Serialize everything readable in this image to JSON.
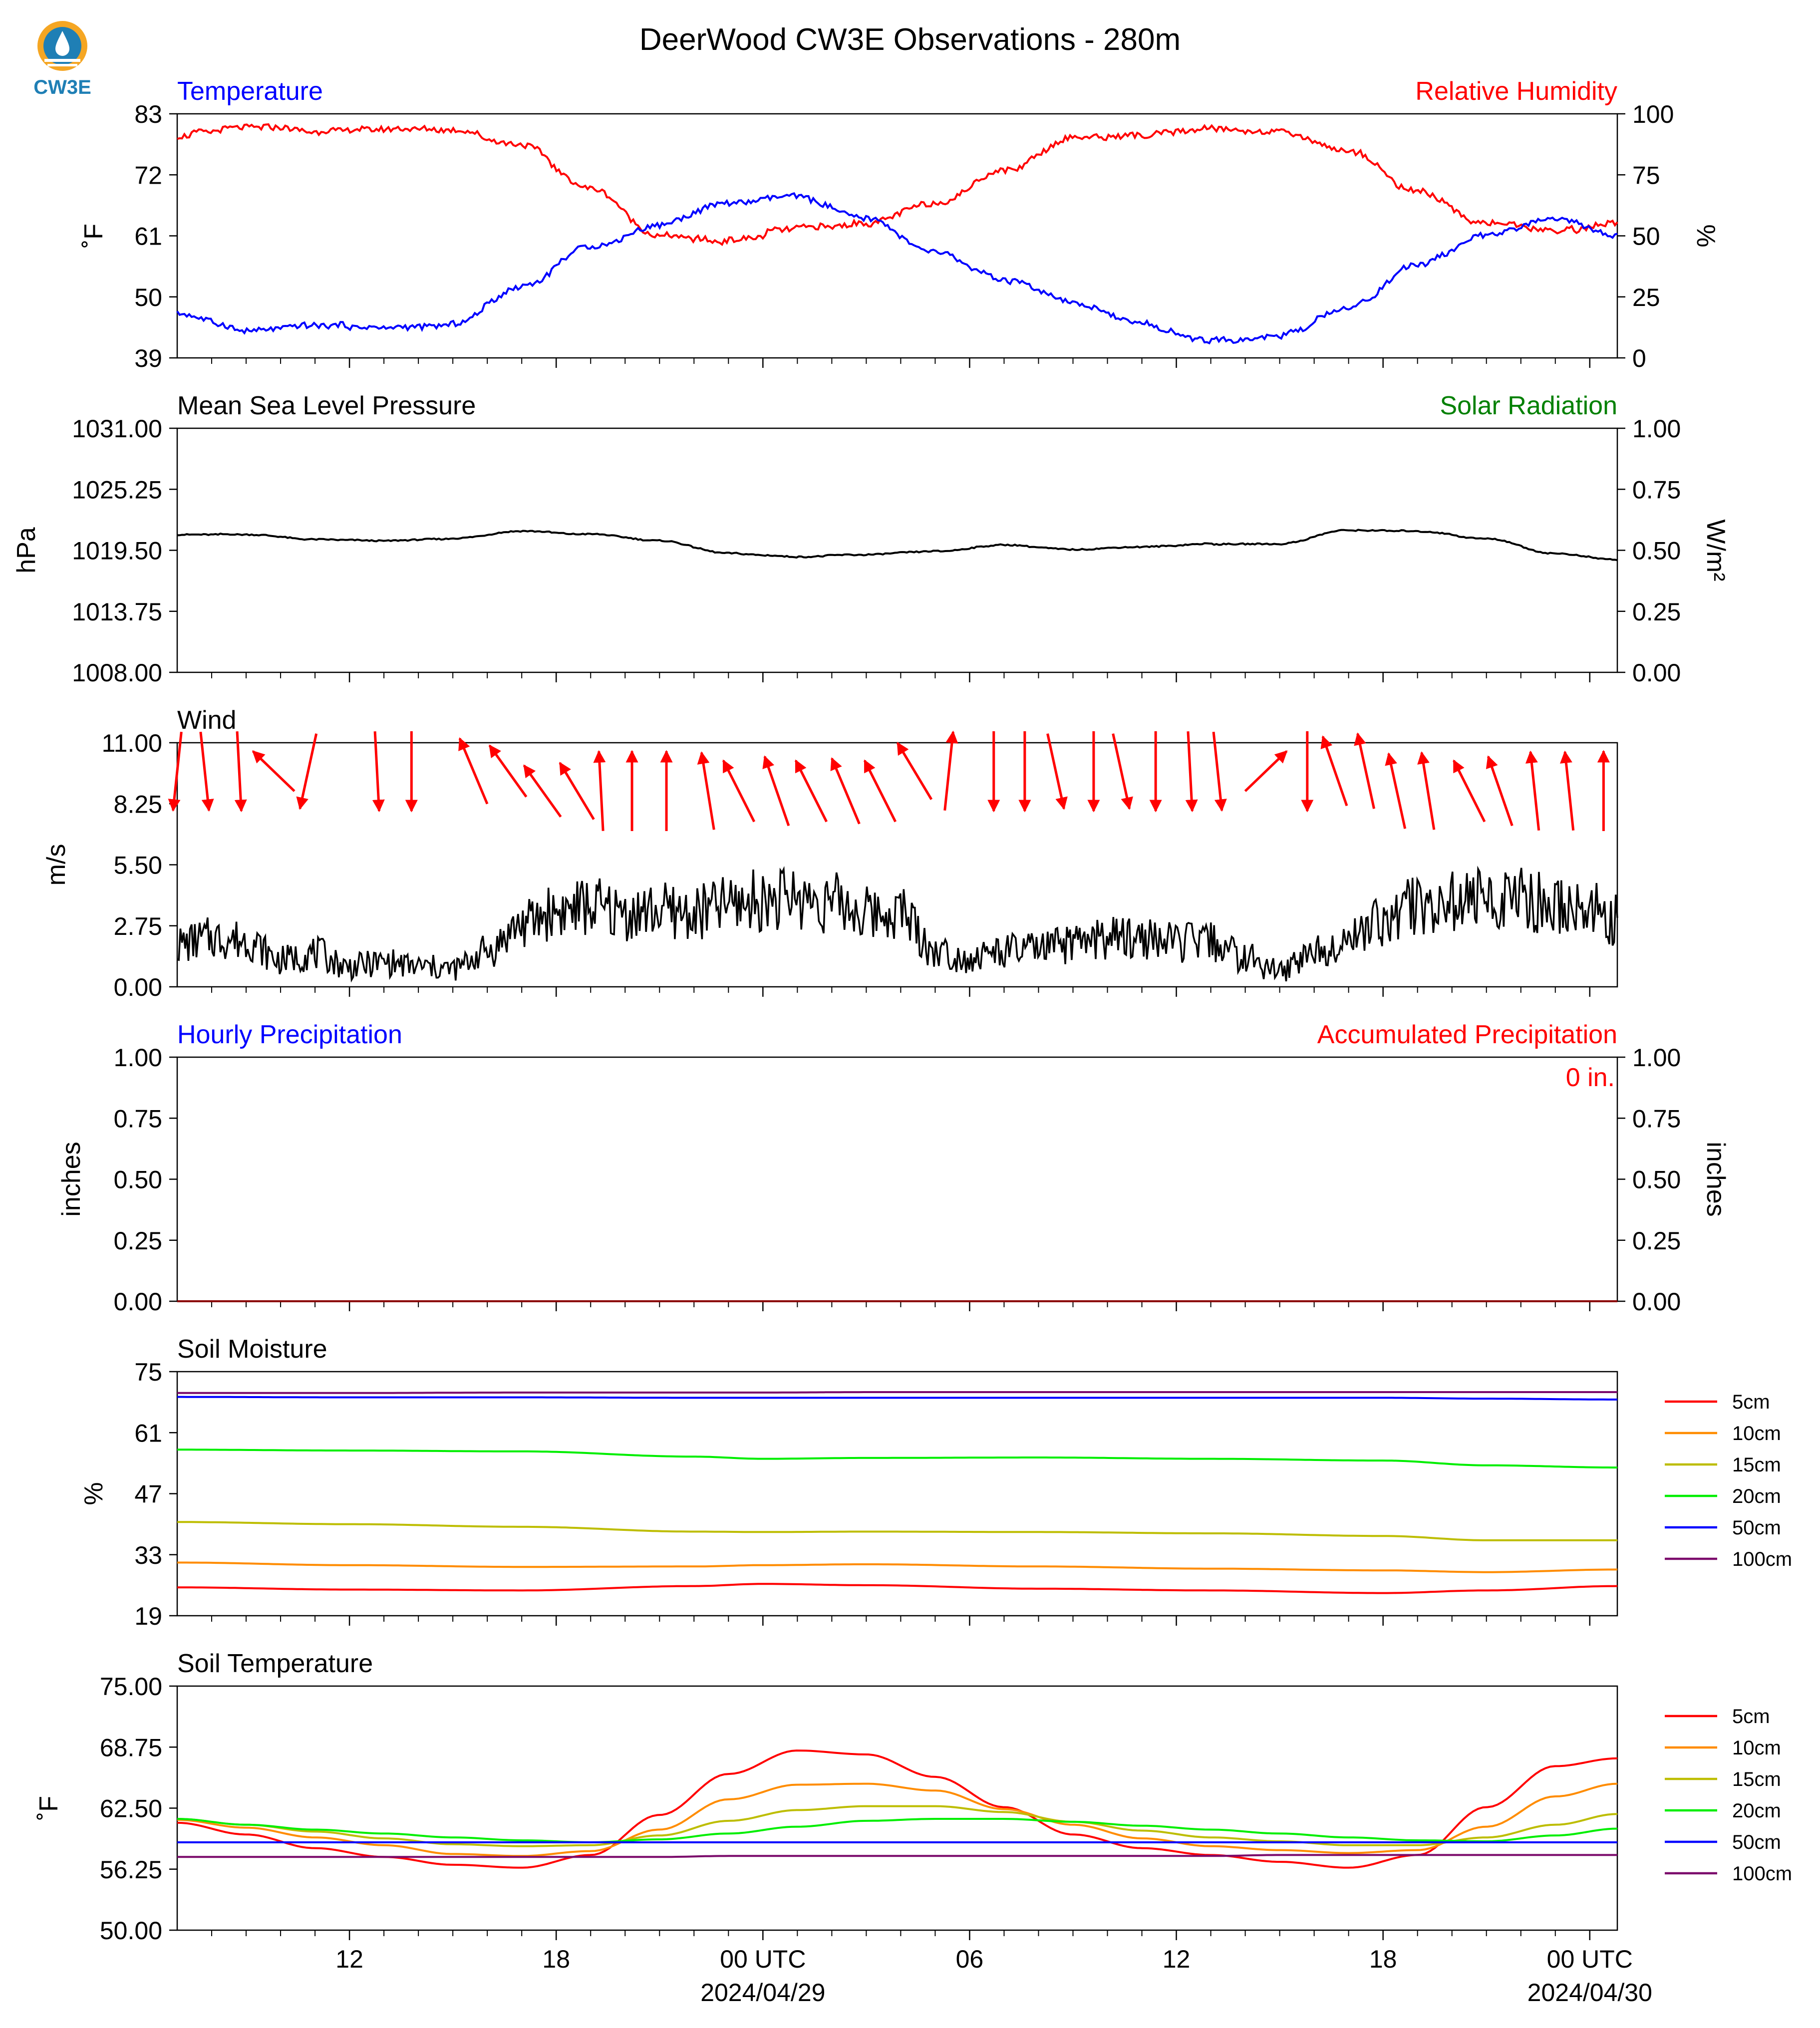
{
  "title": "DeerWood CW3E Observations - 280m",
  "logo_text": "CW3E",
  "colors": {
    "red": "#ff0000",
    "blue": "#0000ff",
    "green": "#008000",
    "black": "#000000",
    "logo_orange": "#f5a623",
    "logo_blue": "#1f7fb5"
  },
  "time_axis": {
    "tick_labels": [
      "12",
      "18",
      "00 UTC",
      "06",
      "12",
      "18",
      "00 UTC"
    ],
    "date_labels": [
      "2024/04/29",
      "2024/04/30"
    ]
  },
  "panels": {
    "temp_rh": {
      "left_title": "Temperature",
      "right_title": "Relative Humidity",
      "ylabel_left": "˚F",
      "ylabel_right": "%",
      "yticks_left": [
        "83",
        "72",
        "61",
        "50",
        "39"
      ],
      "yticks_right": [
        "100",
        "75",
        "50",
        "25",
        "0"
      ]
    },
    "pressure": {
      "left_title": "Mean Sea Level Pressure",
      "right_title": "Solar Radiation",
      "ylabel_left": "hPa",
      "ylabel_right": "W/m²",
      "yticks_left": [
        "1031.00",
        "1025.25",
        "1019.50",
        "1013.75",
        "1008.00"
      ],
      "yticks_right": [
        "1.00",
        "0.75",
        "0.50",
        "0.25",
        "0.00"
      ]
    },
    "wind": {
      "left_title": "Wind",
      "ylabel_left": "m/s",
      "yticks_left": [
        "11.00",
        "8.25",
        "5.50",
        "2.75",
        "0.00"
      ]
    },
    "precip": {
      "left_title": "Hourly Precipitation",
      "right_title": "Accumulated Precipitation",
      "ylabel_left": "inches",
      "ylabel_right": "inches",
      "yticks_left": [
        "1.00",
        "0.75",
        "0.50",
        "0.25",
        "0.00"
      ],
      "yticks_right": [
        "1.00",
        "0.75",
        "0.50",
        "0.25",
        "0.00"
      ],
      "accum_label": "0 in."
    },
    "soil_moisture": {
      "left_title": "Soil Moisture",
      "ylabel_left": "%",
      "yticks_left": [
        "75",
        "61",
        "47",
        "33",
        "19"
      ],
      "legend": [
        "5cm",
        "10cm",
        "15cm",
        "20cm",
        "50cm",
        "100cm"
      ]
    },
    "soil_temp": {
      "left_title": "Soil Temperature",
      "ylabel_left": "˚F",
      "yticks_left": [
        "75.00",
        "68.75",
        "62.50",
        "56.25",
        "50.00"
      ],
      "legend": [
        "5cm",
        "10cm",
        "15cm",
        "20cm",
        "50cm",
        "100cm"
      ]
    }
  },
  "chart_data": [
    {
      "type": "line",
      "title": "Temperature / Relative Humidity",
      "x_hours": [
        7,
        9,
        11,
        13,
        15,
        17,
        19,
        21,
        23,
        25,
        27,
        29,
        31,
        33,
        35,
        37,
        39,
        41,
        43,
        45,
        47,
        48.8
      ],
      "series": [
        {
          "name": "Temperature",
          "axis": "left",
          "ylim": [
            39,
            83
          ],
          "values": [
            47,
            44,
            45,
            44.5,
            45,
            52,
            59,
            63,
            67,
            68,
            64,
            58,
            53,
            49,
            45,
            42,
            43,
            48,
            56,
            61,
            64,
            61
          ]
        },
        {
          "name": "Relative Humidity",
          "axis": "right",
          "ylim": [
            0,
            100
          ],
          "values": [
            91,
            95,
            93,
            94,
            93,
            87,
            69,
            50,
            48,
            53,
            55,
            63,
            77,
            90,
            91,
            94,
            93,
            85,
            68,
            55,
            52,
            55
          ]
        }
      ]
    },
    {
      "type": "line",
      "title": "Mean Sea Level Pressure",
      "ylim": [
        1008,
        1031
      ],
      "x_hours": [
        7,
        9,
        11,
        13,
        15,
        17,
        19,
        21,
        23,
        25,
        27,
        29,
        31,
        33,
        35,
        37,
        39,
        41,
        43,
        45,
        47,
        48.8
      ],
      "series": [
        {
          "name": "Mean Sea Level Pressure",
          "values": [
            1021.0,
            1021.0,
            1020.5,
            1020.4,
            1020.6,
            1021.3,
            1021.0,
            1020.4,
            1019.2,
            1018.9,
            1019.1,
            1019.4,
            1020.0,
            1019.6,
            1019.8,
            1020.1,
            1020.1,
            1021.4,
            1021.3,
            1020.6,
            1019.2,
            1018.6
          ]
        }
      ]
    },
    {
      "type": "line",
      "title": "Wind",
      "ylim": [
        0,
        11
      ],
      "x_hours": [
        7,
        8,
        9,
        10,
        11,
        12,
        13,
        14,
        15,
        16,
        17,
        18,
        19,
        20,
        21,
        22,
        23,
        24,
        25,
        26,
        27,
        28,
        29,
        30,
        31,
        32,
        33,
        34,
        35,
        36,
        37,
        38,
        39,
        40,
        41,
        42,
        43,
        44,
        45,
        46,
        47,
        48,
        48.8
      ],
      "series": [
        {
          "name": "Wind speed",
          "values": [
            1.9,
            2.2,
            2.1,
            1.2,
            1.5,
            0.9,
            1.1,
            0.9,
            0.8,
            1.6,
            2.8,
            3.4,
            3.6,
            3.3,
            3.4,
            3.3,
            3.7,
            3.9,
            4.0,
            3.8,
            3.3,
            3.4,
            1.6,
            1.3,
            1.6,
            1.7,
            1.9,
            2.2,
            2.2,
            2.0,
            2.0,
            1.3,
            0.7,
            1.6,
            2.2,
            3.0,
            3.7,
            3.8,
            3.9,
            4.0,
            3.6,
            3.5,
            3.0
          ]
        }
      ],
      "arrows": {
        "x_hours": [
          7,
          7.8,
          8.8,
          9.8,
          10.8,
          12.8,
          13.8,
          15.6,
          16.6,
          17.6,
          18.6,
          19.3,
          20.2,
          21.2,
          22.4,
          23.3,
          24.4,
          25.4,
          26.4,
          27.4,
          28.4,
          29.4,
          30.7,
          31.6,
          32.5,
          33.6,
          34.4,
          35.4,
          36.4,
          37.2,
          38.6,
          39.8,
          40.6,
          41.5,
          42.4,
          43.3,
          44.5,
          45.4,
          46.4,
          47.4,
          48.4
        ],
        "direction_deg": [
          190,
          170,
          175,
          300,
          200,
          175,
          180,
          325,
          310,
          310,
          315,
          355,
          0,
          0,
          345,
          320,
          330,
          320,
          325,
          320,
          315,
          10,
          180,
          180,
          160,
          180,
          160,
          180,
          175,
          170,
          60,
          180,
          330,
          340,
          340,
          345,
          320,
          330,
          350,
          350,
          0
        ]
      }
    },
    {
      "type": "line",
      "title": "Hourly Precipitation / Accumulated Precipitation",
      "ylim": [
        0,
        1
      ],
      "x_hours": [
        7,
        48.8
      ],
      "series": [
        {
          "name": "Hourly Precipitation",
          "values": [
            0,
            0
          ]
        },
        {
          "name": "Accumulated Precipitation",
          "values": [
            0,
            0
          ]
        }
      ]
    },
    {
      "type": "line",
      "title": "Soil Moisture",
      "ylim": [
        19,
        75
      ],
      "x_hours": [
        7,
        12,
        17,
        22,
        24,
        27,
        32,
        37,
        42,
        45,
        48.8
      ],
      "series": [
        {
          "name": "5cm",
          "values": [
            25.5,
            25.0,
            24.8,
            25.8,
            26.3,
            26.0,
            25.2,
            24.8,
            24.2,
            24.8,
            25.8
          ]
        },
        {
          "name": "10cm",
          "values": [
            31.2,
            30.6,
            30.2,
            30.3,
            30.6,
            30.8,
            30.3,
            29.8,
            29.4,
            29.0,
            29.6
          ]
        },
        {
          "name": "15cm",
          "values": [
            40.5,
            40.0,
            39.4,
            38.3,
            38.2,
            38.3,
            38.2,
            37.9,
            37.3,
            36.3,
            36.3
          ]
        },
        {
          "name": "20cm",
          "values": [
            57.1,
            56.9,
            56.7,
            55.5,
            55.0,
            55.2,
            55.3,
            55.0,
            54.6,
            53.5,
            53.0
          ]
        },
        {
          "name": "50cm",
          "values": [
            69.2,
            69.1,
            69.1,
            69.0,
            69.0,
            69.0,
            69.0,
            69.0,
            69.0,
            68.8,
            68.6
          ]
        },
        {
          "name": "100cm",
          "values": [
            70.1,
            70.1,
            70.2,
            70.2,
            70.2,
            70.3,
            70.3,
            70.3,
            70.3,
            70.3,
            70.3
          ]
        }
      ]
    },
    {
      "type": "line",
      "title": "Soil Temperature",
      "ylim": [
        50,
        75
      ],
      "x_hours": [
        7,
        9,
        11,
        13,
        15,
        17,
        19,
        21,
        23,
        25,
        27,
        29,
        31,
        33,
        35,
        37,
        39,
        41,
        43,
        45,
        47,
        48.8
      ],
      "series": [
        {
          "name": "5cm",
          "values": [
            61.0,
            59.8,
            58.4,
            57.5,
            56.7,
            56.4,
            57.7,
            61.8,
            66.0,
            68.4,
            68.0,
            65.7,
            62.6,
            59.8,
            58.4,
            57.7,
            57.0,
            56.4,
            57.7,
            62.6,
            66.8,
            67.6
          ]
        },
        {
          "name": "10cm",
          "values": [
            61.3,
            60.5,
            59.5,
            58.7,
            57.8,
            57.6,
            58.1,
            60.3,
            63.4,
            64.9,
            65.0,
            64.3,
            62.4,
            60.8,
            59.4,
            58.6,
            58.2,
            57.9,
            58.2,
            60.6,
            63.7,
            65.0
          ]
        },
        {
          "name": "15cm",
          "values": [
            61.4,
            60.8,
            60.1,
            59.4,
            58.8,
            58.6,
            58.7,
            59.7,
            61.2,
            62.3,
            62.7,
            62.7,
            62.1,
            61.1,
            60.2,
            59.5,
            59.1,
            58.7,
            58.7,
            59.5,
            60.8,
            61.9
          ]
        },
        {
          "name": "20cm",
          "values": [
            61.4,
            60.8,
            60.3,
            59.9,
            59.5,
            59.2,
            59.0,
            59.3,
            59.9,
            60.6,
            61.2,
            61.4,
            61.4,
            61.1,
            60.7,
            60.3,
            59.9,
            59.5,
            59.2,
            59.1,
            59.7,
            60.4
          ]
        },
        {
          "name": "50cm",
          "values": [
            59.0,
            59.0,
            59.0,
            59.0,
            59.0,
            59.0,
            59.0,
            59.0,
            59.0,
            59.0,
            59.0,
            59.0,
            59.0,
            59.0,
            59.0,
            59.0,
            59.0,
            59.0,
            59.0,
            59.0,
            59.0,
            59.0
          ]
        },
        {
          "name": "100cm",
          "values": [
            57.5,
            57.5,
            57.5,
            57.5,
            57.5,
            57.5,
            57.5,
            57.5,
            57.6,
            57.6,
            57.6,
            57.6,
            57.6,
            57.6,
            57.6,
            57.6,
            57.7,
            57.7,
            57.7,
            57.7,
            57.7,
            57.7
          ]
        }
      ]
    }
  ]
}
